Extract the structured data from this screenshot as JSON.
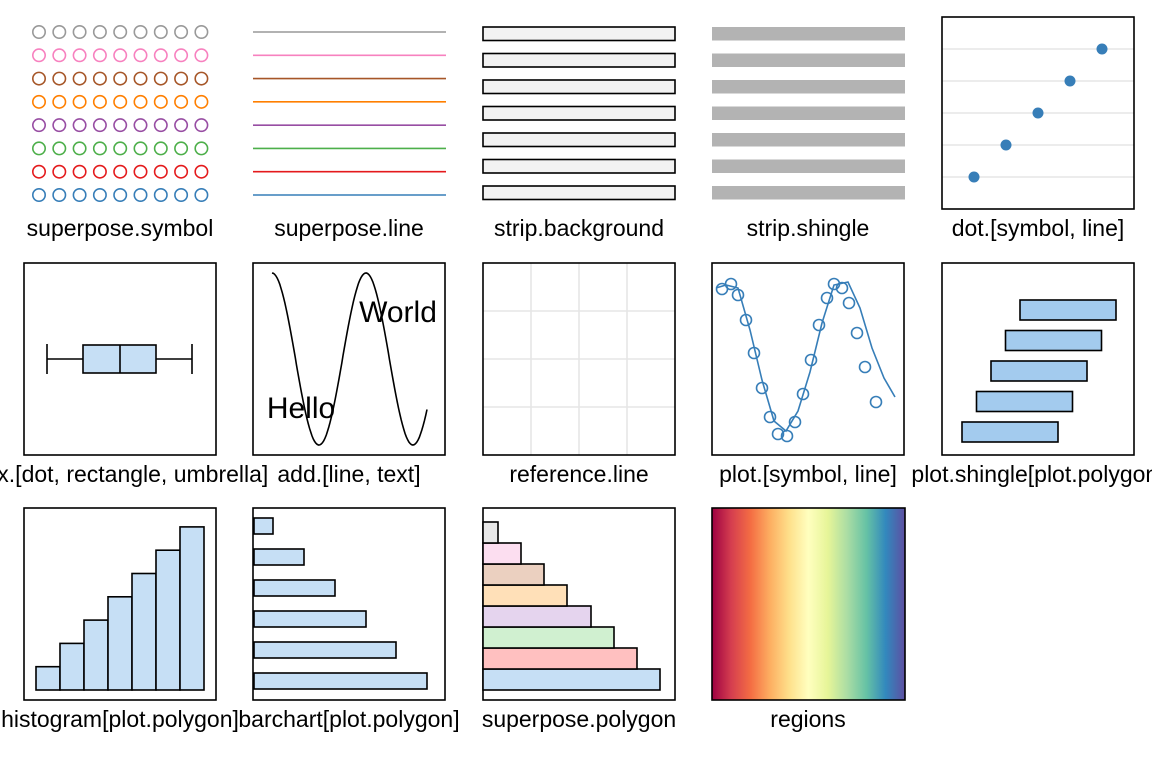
{
  "panels": [
    {
      "id": "superpose-symbol",
      "label": "superpose.symbol"
    },
    {
      "id": "superpose-line",
      "label": "superpose.line"
    },
    {
      "id": "strip-background",
      "label": "strip.background"
    },
    {
      "id": "strip-shingle",
      "label": "strip.shingle"
    },
    {
      "id": "dot-symbol-line",
      "label": "dot.[symbol, line]"
    },
    {
      "id": "box-dot-rectangle-umbrella",
      "label": "box.[dot, rectangle, umbrella]"
    },
    {
      "id": "add-line-text",
      "label": "add.[line, text]",
      "texts": [
        "World",
        "Hello"
      ]
    },
    {
      "id": "reference-line",
      "label": "reference.line"
    },
    {
      "id": "plot-symbol-line",
      "label": "plot.[symbol, line]"
    },
    {
      "id": "plot-shingle",
      "label": "plot.shingle[plot.polygon]"
    },
    {
      "id": "histogram",
      "label": "histogram[plot.polygon]"
    },
    {
      "id": "barchart",
      "label": "barchart[plot.polygon]"
    },
    {
      "id": "superpose-polygon",
      "label": "superpose.polygon"
    },
    {
      "id": "regions",
      "label": "regions"
    }
  ],
  "colors": {
    "superpose": [
      "#377EB8",
      "#E41A1C",
      "#4DAF4A",
      "#984EA3",
      "#FF7F00",
      "#A65628",
      "#F781BF",
      "#999999"
    ],
    "polygon_fill": [
      "#C6DFF5",
      "#FFC0C0",
      "#D0F0D0",
      "#E5D4EE",
      "#FFE0B8",
      "#EBD0C0",
      "#FCDEF0",
      "#E8E8E8"
    ],
    "strip_bg": "#F2F2F2",
    "strip_shingle": "#B3B3B3",
    "dot_symbol": "#377EB8",
    "grid": "#E6E6E6",
    "plot_line": "#377EB8",
    "shingle_fill": "#A3CBEE",
    "box_fill": "#C6DFF5",
    "bar_fill": "#C6DFF5",
    "regions": [
      "#9E0142",
      "#D53E4F",
      "#F46D43",
      "#FDAE61",
      "#FEE08B",
      "#FFFFBF",
      "#E6F598",
      "#ABDDA4",
      "#66C2A5",
      "#3288BD",
      "#5E4FA2"
    ]
  },
  "chart_data": [
    {
      "type": "scatter",
      "name": "superpose.symbol",
      "rows": 8,
      "points_per_row": 9
    },
    {
      "type": "line",
      "name": "superpose.line",
      "rows": 8
    },
    {
      "type": "bar",
      "name": "strip.background",
      "count": 7
    },
    {
      "type": "bar",
      "name": "strip.shingle",
      "count": 7
    },
    {
      "type": "scatter",
      "name": "dot.[symbol, line]",
      "x": [
        1,
        2,
        3,
        4,
        5
      ],
      "y": [
        1,
        2,
        3,
        4,
        5
      ]
    },
    {
      "type": "box",
      "name": "box.[dot, rectangle, umbrella]",
      "min": 0,
      "q1": 2,
      "median": 4,
      "q3": 6,
      "max": 8
    },
    {
      "type": "line",
      "name": "add.[line, text]",
      "function": "sin"
    },
    {
      "type": "table",
      "name": "reference.line",
      "grid": true
    },
    {
      "type": "scatter",
      "name": "plot.[symbol, line]"
    },
    {
      "type": "bar",
      "name": "plot.shingle[plot.polygon]",
      "intervals": [
        [
          0,
          4
        ],
        [
          1,
          5
        ],
        [
          2,
          6
        ],
        [
          3,
          7
        ],
        [
          4,
          8
        ]
      ]
    },
    {
      "type": "bar",
      "name": "histogram[plot.polygon]",
      "values": [
        1,
        2,
        3,
        4,
        5,
        6,
        7
      ]
    },
    {
      "type": "bar",
      "name": "barchart[plot.polygon]",
      "orientation": "horizontal",
      "values": [
        1,
        2,
        3,
        4,
        5,
        6
      ]
    },
    {
      "type": "bar",
      "name": "superpose.polygon",
      "orientation": "horizontal",
      "values": [
        8,
        7,
        6,
        5,
        4,
        3,
        2,
        1
      ]
    },
    {
      "type": "heatmap",
      "name": "regions",
      "palette_steps": 11
    }
  ]
}
